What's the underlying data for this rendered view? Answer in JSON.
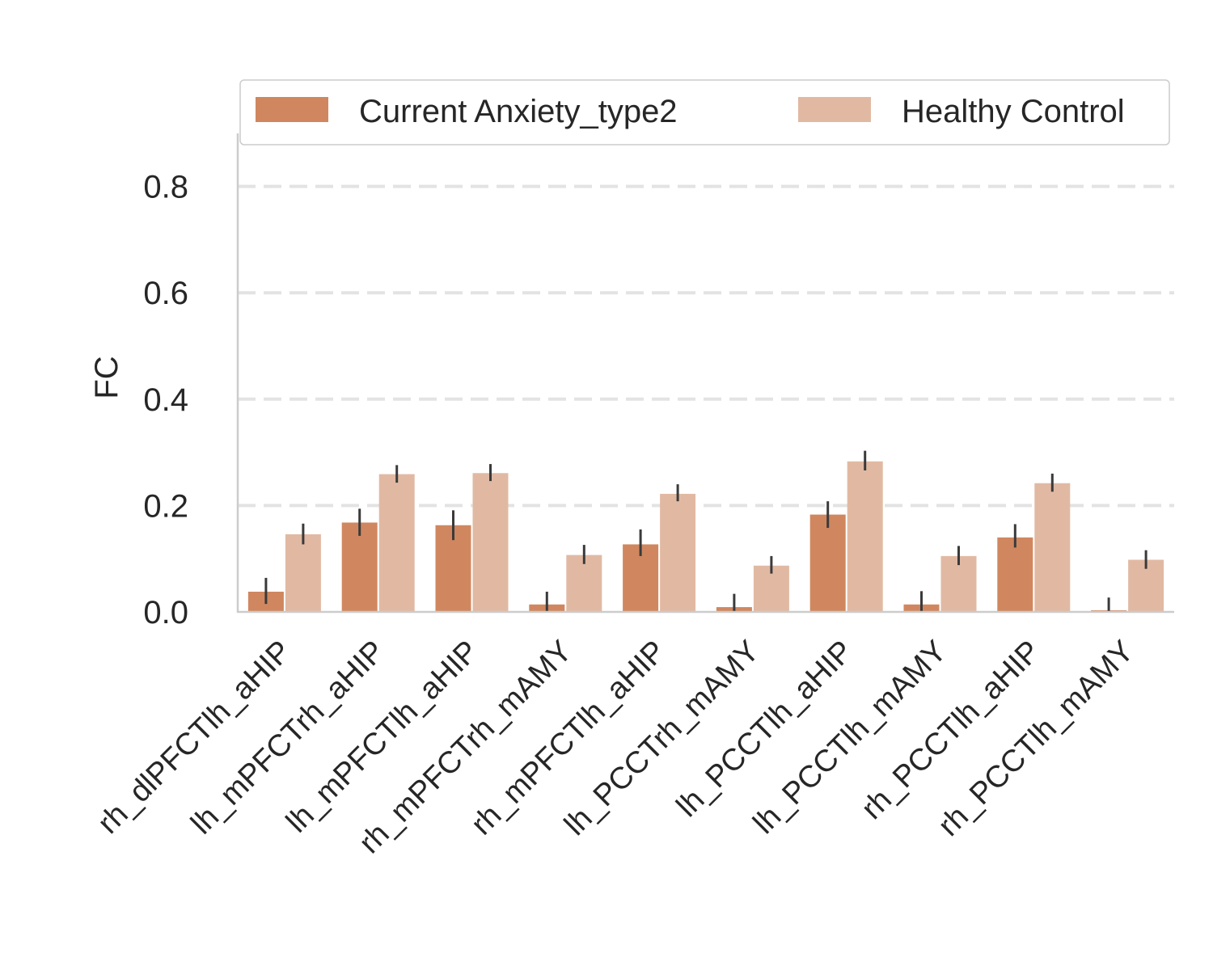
{
  "chart_data": {
    "type": "bar",
    "categories": [
      "rh_dlPFCTlh_aHIP",
      "lh_mPFCTrh_aHIP",
      "lh_mPFCTlh_aHIP",
      "rh_mPFCTrh_mAMY",
      "rh_mPFCTlh_aHIP",
      "lh_PCCTrh_mAMY",
      "lh_PCCTlh_aHIP",
      "lh_PCCTlh_mAMY",
      "rh_PCCTlh_aHIP",
      "rh_PCCTlh_mAMY"
    ],
    "series": [
      {
        "name": "Current Anxiety_type2",
        "color": "#d0875f",
        "values": [
          0.038,
          0.168,
          0.163,
          0.014,
          0.127,
          0.009,
          0.183,
          0.014,
          0.14,
          0.003
        ],
        "err_low": [
          0.015,
          0.143,
          0.135,
          0.0,
          0.105,
          0.0,
          0.158,
          0.0,
          0.121,
          0.0
        ],
        "err_high": [
          0.064,
          0.194,
          0.191,
          0.038,
          0.155,
          0.034,
          0.208,
          0.039,
          0.165,
          0.027
        ]
      },
      {
        "name": "Healthy Control",
        "color": "#e1b9a3",
        "values": [
          0.146,
          0.259,
          0.261,
          0.107,
          0.222,
          0.087,
          0.283,
          0.105,
          0.242,
          0.098
        ],
        "err_low": [
          0.127,
          0.243,
          0.246,
          0.09,
          0.208,
          0.072,
          0.266,
          0.088,
          0.226,
          0.081
        ],
        "err_high": [
          0.166,
          0.276,
          0.278,
          0.126,
          0.24,
          0.105,
          0.303,
          0.124,
          0.26,
          0.116
        ]
      }
    ],
    "ylabel": "FC",
    "xlabel": "",
    "ylim": [
      0,
      0.9
    ],
    "yticks": [
      "0.0",
      "0.2",
      "0.4",
      "0.6",
      "0.8"
    ],
    "grid": "horizontal dashed",
    "legend_placement": "top"
  }
}
